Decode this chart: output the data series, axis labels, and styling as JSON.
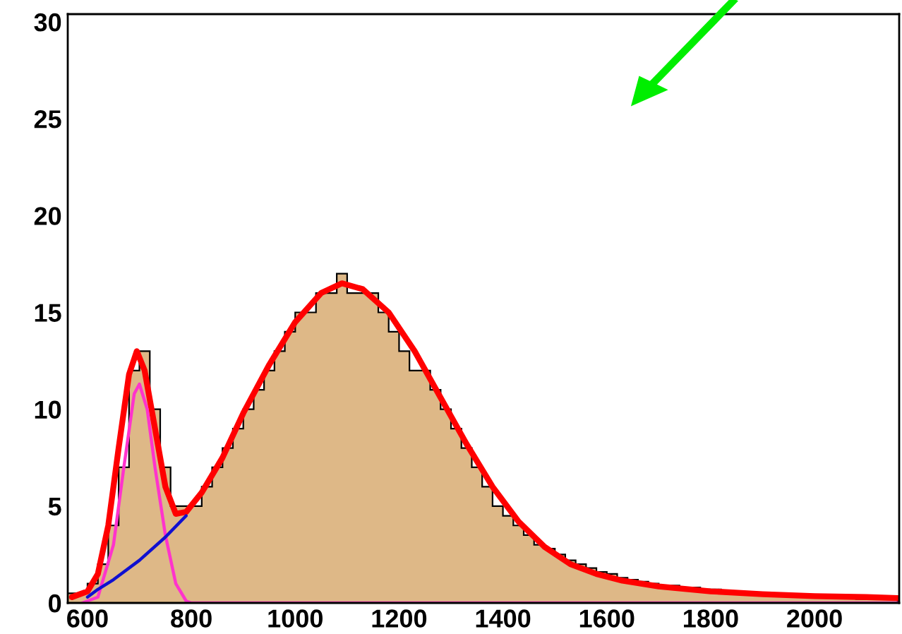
{
  "chart_data": {
    "type": "histogram",
    "bins": [
      560,
      580,
      600,
      620,
      640,
      660,
      680,
      700,
      720,
      740,
      760,
      780,
      800,
      820,
      840,
      860,
      880,
      900,
      920,
      940,
      960,
      980,
      1000,
      1020,
      1040,
      1060,
      1080,
      1100,
      1120,
      1140,
      1160,
      1180,
      1200,
      1220,
      1240,
      1260,
      1280,
      1300,
      1320,
      1340,
      1360,
      1380,
      1400,
      1420,
      1440,
      1460,
      1480,
      1500,
      1520,
      1540,
      1560,
      1580,
      1600,
      1620,
      1640,
      1660,
      1680,
      1700,
      1720,
      1740,
      1760,
      1780,
      1800,
      1820,
      1840,
      1860,
      1880,
      1900,
      1920,
      1940,
      1960,
      1980,
      2000,
      2020,
      2040,
      2060,
      2080,
      2100,
      2120,
      2140,
      2160
    ],
    "values": [
      0.5,
      0.5,
      1,
      2,
      4,
      7,
      12,
      13,
      10,
      7,
      5,
      5,
      5,
      6,
      7,
      8,
      9,
      10,
      11,
      12,
      13,
      14,
      15,
      15,
      16,
      16,
      17,
      16,
      16,
      16,
      15,
      14,
      13,
      12,
      12,
      11,
      10,
      9,
      8,
      7,
      6,
      5,
      4.5,
      4,
      3.5,
      3,
      2.8,
      2.5,
      2.2,
      2,
      1.8,
      1.6,
      1.5,
      1.3,
      1.2,
      1.1,
      1,
      0.9,
      0.9,
      0.8,
      0.8,
      0.7,
      0.7,
      0.6,
      0.6,
      0.5,
      0.5,
      0.5,
      0.4,
      0.4,
      0.4,
      0.3,
      0.3,
      0.3,
      0.3,
      0.3,
      0.2,
      0.2,
      0.2,
      0.2
    ],
    "color": "#deb887",
    "series": [
      {
        "type": "line",
        "color": "#ff0000",
        "x": [
          570,
          600,
          620,
          640,
          660,
          680,
          695,
          710,
          730,
          750,
          770,
          790,
          820,
          860,
          900,
          950,
          1000,
          1050,
          1090,
          1130,
          1180,
          1230,
          1280,
          1330,
          1380,
          1430,
          1480,
          1530,
          1580,
          1630,
          1700,
          1800,
          1900,
          2000,
          2100,
          2160
        ],
        "values": [
          0.3,
          0.6,
          1.5,
          4,
          8,
          11.8,
          13,
          12,
          9,
          6,
          4.6,
          4.7,
          5.7,
          7.5,
          9.8,
          12.3,
          14.5,
          16,
          16.5,
          16.2,
          15,
          13,
          10.6,
          8.2,
          6,
          4.2,
          2.9,
          2,
          1.5,
          1.15,
          0.85,
          0.6,
          0.45,
          0.35,
          0.3,
          0.25
        ]
      },
      {
        "type": "line",
        "color": "#ff33cc",
        "x": [
          590,
          620,
          650,
          670,
          690,
          700,
          715,
          730,
          750,
          770,
          790,
          800,
          2160
        ],
        "values": [
          0,
          0.3,
          3,
          7,
          10.8,
          11.3,
          10,
          7,
          3.5,
          1,
          0.1,
          0,
          0
        ]
      },
      {
        "type": "line",
        "color": "#1010d0",
        "x": [
          600,
          620,
          650,
          700,
          750,
          790
        ],
        "values": [
          0.3,
          0.7,
          1.2,
          2.2,
          3.4,
          4.5
        ]
      }
    ],
    "xlim": [
      562,
      2163
    ],
    "ylim": [
      0,
      30.4
    ],
    "xticks": [
      600,
      800,
      1000,
      1200,
      1400,
      1600,
      1800,
      2000
    ],
    "yticks": [
      0,
      5,
      10,
      15,
      20,
      25,
      30
    ],
    "grid": false
  }
}
